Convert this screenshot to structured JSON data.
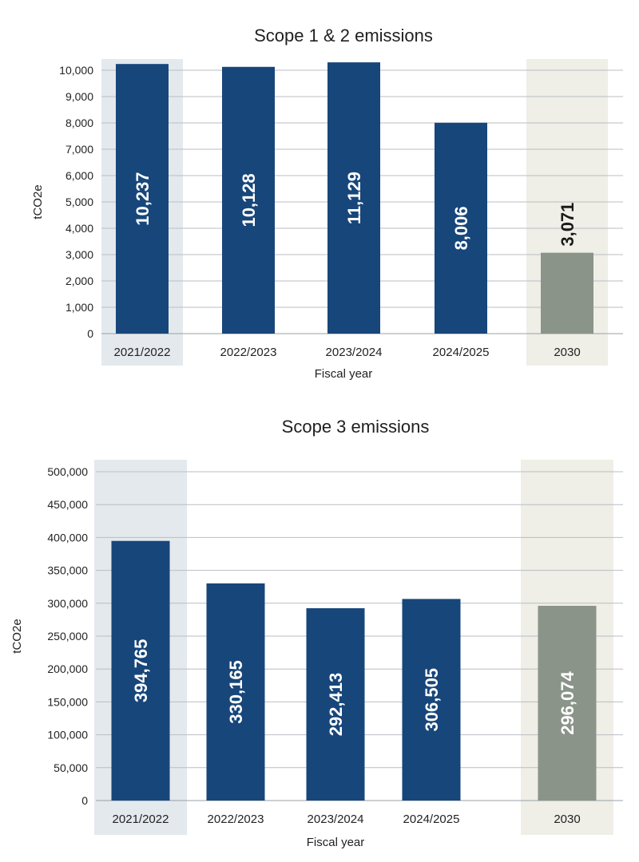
{
  "chart_data": [
    {
      "type": "bar",
      "title": "Scope 1 & 2 emissions",
      "xlabel": "Fiscal year",
      "ylabel": "tCO2e",
      "ylim": [
        0,
        10000
      ],
      "yticks": [
        0,
        1000,
        2000,
        3000,
        4000,
        5000,
        6000,
        7000,
        8000,
        9000,
        10000
      ],
      "ytick_labels": [
        "0",
        "1,000",
        "2,000",
        "3,000",
        "4,000",
        "5,000",
        "6,000",
        "7,000",
        "8,000",
        "9,000",
        "10,000"
      ],
      "grid": true,
      "categories": [
        "2021/2022",
        "2022/2023",
        "2023/2024",
        "2024/2025",
        "2030"
      ],
      "values": [
        10237,
        10128,
        11129,
        8006,
        3071
      ],
      "data_labels": [
        "10,237",
        "10,128",
        "11,129",
        "8,006",
        "3,071"
      ],
      "bar_colors": [
        "#17467a",
        "#17467a",
        "#17467a",
        "#17467a",
        "#8a9488"
      ],
      "highlight_bands": [
        {
          "category": "2021/2022",
          "color": "#e4e9ee"
        },
        {
          "category": "2030",
          "color": "#efeee7"
        }
      ]
    },
    {
      "type": "bar",
      "title": "Scope 3 emissions",
      "xlabel": "Fiscal year",
      "ylabel": "tCO2e",
      "ylim": [
        0,
        500000
      ],
      "yticks": [
        0,
        50000,
        100000,
        150000,
        200000,
        250000,
        300000,
        350000,
        400000,
        450000,
        500000
      ],
      "ytick_labels": [
        "0",
        "50,000",
        "100,000",
        "150,000",
        "200,000",
        "250,000",
        "300,000",
        "350,000",
        "400,000",
        "450,000",
        "500,000"
      ],
      "grid": true,
      "categories": [
        "2021/2022",
        "2022/2023",
        "2023/2024",
        "2024/2025",
        "2030"
      ],
      "values": [
        394765,
        330165,
        292413,
        306505,
        296074
      ],
      "data_labels": [
        "394,765",
        "330,165",
        "292,413",
        "306,505",
        "296,074"
      ],
      "bar_colors": [
        "#17467a",
        "#17467a",
        "#17467a",
        "#17467a",
        "#8a9488"
      ],
      "highlight_bands": [
        {
          "category": "2021/2022",
          "color": "#e4e9ee"
        },
        {
          "category": "2030",
          "color": "#efeee7"
        }
      ]
    }
  ]
}
